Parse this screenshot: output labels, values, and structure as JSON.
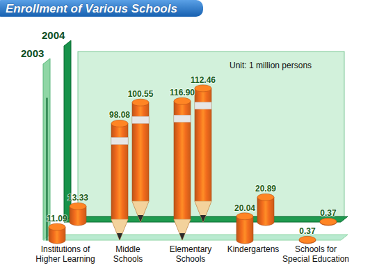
{
  "chart_data": {
    "type": "bar",
    "title": "Enrollment of Various Schools",
    "annotation": "Unit: 1 million persons",
    "categories": [
      "Institutions of Higher Learning",
      "Middle Schools",
      "Elementary Schools",
      "Kindergartens",
      "Schools for Special Education"
    ],
    "series": [
      {
        "name": "2003",
        "color": "#f26b1d",
        "values": [
          11.09,
          98.08,
          116.9,
          20.04,
          0.37
        ],
        "value_labels": [
          "11.09",
          "98.08",
          "116.90",
          "20.04",
          "0.37"
        ]
      },
      {
        "name": "2004",
        "color": "#f26b1d",
        "values": [
          13.33,
          100.55,
          112.46,
          20.89,
          0.37
        ]
      }
    ],
    "ylim": [
      0,
      120
    ],
    "yticks": [],
    "tick_labels": false,
    "grid": false,
    "data_labels": true
  }
}
